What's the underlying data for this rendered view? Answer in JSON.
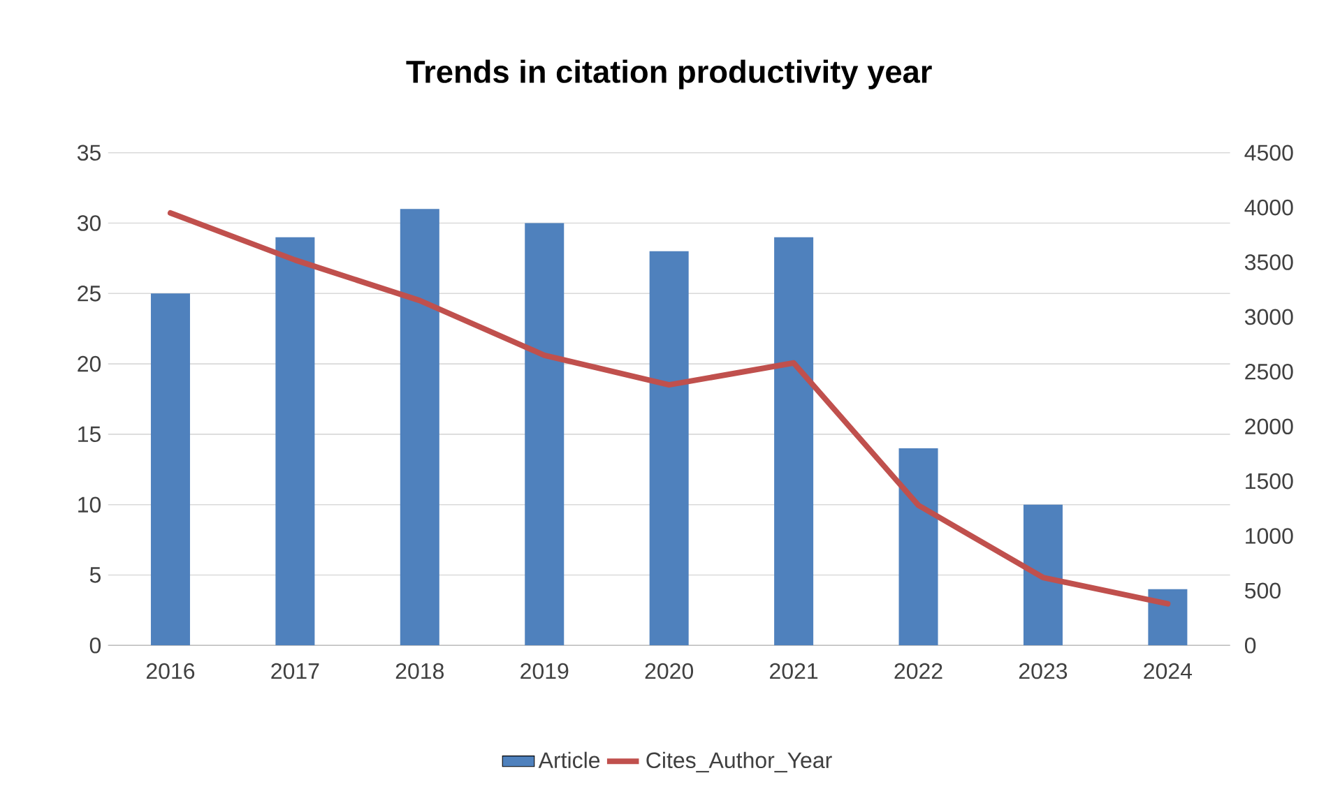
{
  "chart_data": {
    "type": "bar",
    "title": "Trends in citation productivity year",
    "categories": [
      "2016",
      "2017",
      "2018",
      "2019",
      "2020",
      "2021",
      "2022",
      "2023",
      "2024"
    ],
    "series": [
      {
        "name": "Article",
        "color": "#4f81bd",
        "values": [
          25,
          29,
          31,
          30,
          28,
          29,
          14,
          10,
          4
        ]
      },
      {
        "name": "Cites_Author_Year",
        "type": "line",
        "axis": "y2",
        "color": "#c0504d",
        "values": [
          3950,
          3520,
          3150,
          2650,
          2380,
          2580,
          1280,
          620,
          380
        ]
      }
    ],
    "ylim": [
      0,
      35
    ],
    "yticks": [
      0,
      5,
      10,
      15,
      20,
      25,
      30,
      35
    ],
    "y2lim": [
      0,
      4500
    ],
    "y2ticks": [
      0,
      500,
      1000,
      1500,
      2000,
      2500,
      3000,
      3500,
      4000,
      4500
    ],
    "grid": "y",
    "legend": "bottom",
    "marker": "none",
    "line_style": "solid"
  }
}
